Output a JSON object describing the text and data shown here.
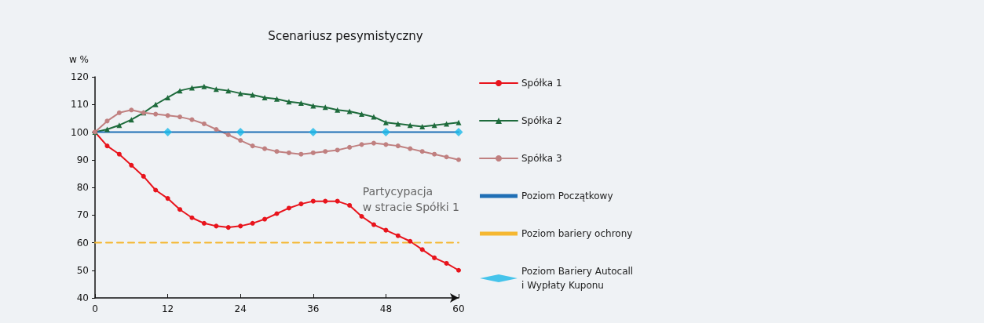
{
  "chart_data": {
    "type": "line",
    "title": "Scenariusz pesymistyczny",
    "ylabel": "w %",
    "x": [
      0,
      2,
      4,
      6,
      8,
      10,
      12,
      14,
      16,
      18,
      20,
      22,
      24,
      26,
      28,
      30,
      32,
      34,
      36,
      38,
      40,
      42,
      44,
      46,
      48,
      50,
      52,
      54,
      56,
      58,
      60
    ],
    "series": [
      {
        "name": "Spółka 1",
        "color": "#e8141c",
        "marker": "circle",
        "values": [
          100,
          95,
          92,
          88,
          84,
          79,
          76,
          72,
          69,
          67,
          66,
          65.5,
          66,
          67,
          68.5,
          70.5,
          72.5,
          74,
          75,
          75,
          75,
          73.5,
          69.5,
          66.5,
          64.5,
          62.5,
          60.5,
          57.5,
          54.5,
          52.5,
          50
        ]
      },
      {
        "name": "Spółka 2",
        "color": "#1e6b3c",
        "marker": "triangle",
        "values": [
          100,
          101,
          102.5,
          104.5,
          107,
          110,
          112.5,
          115,
          116,
          116.5,
          115.5,
          115,
          114,
          113.5,
          112.5,
          112,
          111,
          110.5,
          109.5,
          109,
          108,
          107.5,
          106.5,
          105.5,
          103.5,
          103,
          102.5,
          102,
          102.5,
          103,
          103.5
        ]
      },
      {
        "name": "Spółka 3",
        "color": "#c08080",
        "marker": "circle",
        "values": [
          100,
          104,
          107,
          108,
          107,
          106.5,
          106,
          105.5,
          104.5,
          103,
          101,
          99,
          97,
          95,
          94,
          93,
          92.5,
          92,
          92.5,
          93,
          93.5,
          94.5,
          95.5,
          96,
          95.5,
          95,
          94,
          93,
          92,
          91,
          90
        ]
      },
      {
        "name": "Poziom Początkowy",
        "color": "#1f6fb5",
        "marker": "none",
        "x": [
          0,
          60
        ],
        "values": [
          100,
          100
        ]
      },
      {
        "name": "Poziom bariery ochrony",
        "color": "#f5b731",
        "marker": "none",
        "line_style": "dashed",
        "x": [
          0,
          60
        ],
        "values": [
          60,
          60
        ]
      },
      {
        "name": "Poziom Bariery Autocall\ni Wypłaty Kuponu",
        "type": "scatter",
        "color": "#1ab8e8",
        "marker": "diamond",
        "x": [
          12,
          24,
          36,
          48,
          60
        ],
        "values": [
          100,
          100,
          100,
          100,
          100
        ]
      }
    ],
    "xlim": [
      0,
      60
    ],
    "xticks": [
      0,
      12,
      24,
      36,
      48,
      60
    ],
    "ylim": [
      40,
      120
    ],
    "yticks": [
      40,
      50,
      60,
      70,
      80,
      90,
      100,
      110,
      120
    ],
    "grid": false,
    "legend": "right",
    "annotations": [
      "Partycypacja\nw stracie Spółki 1"
    ]
  }
}
